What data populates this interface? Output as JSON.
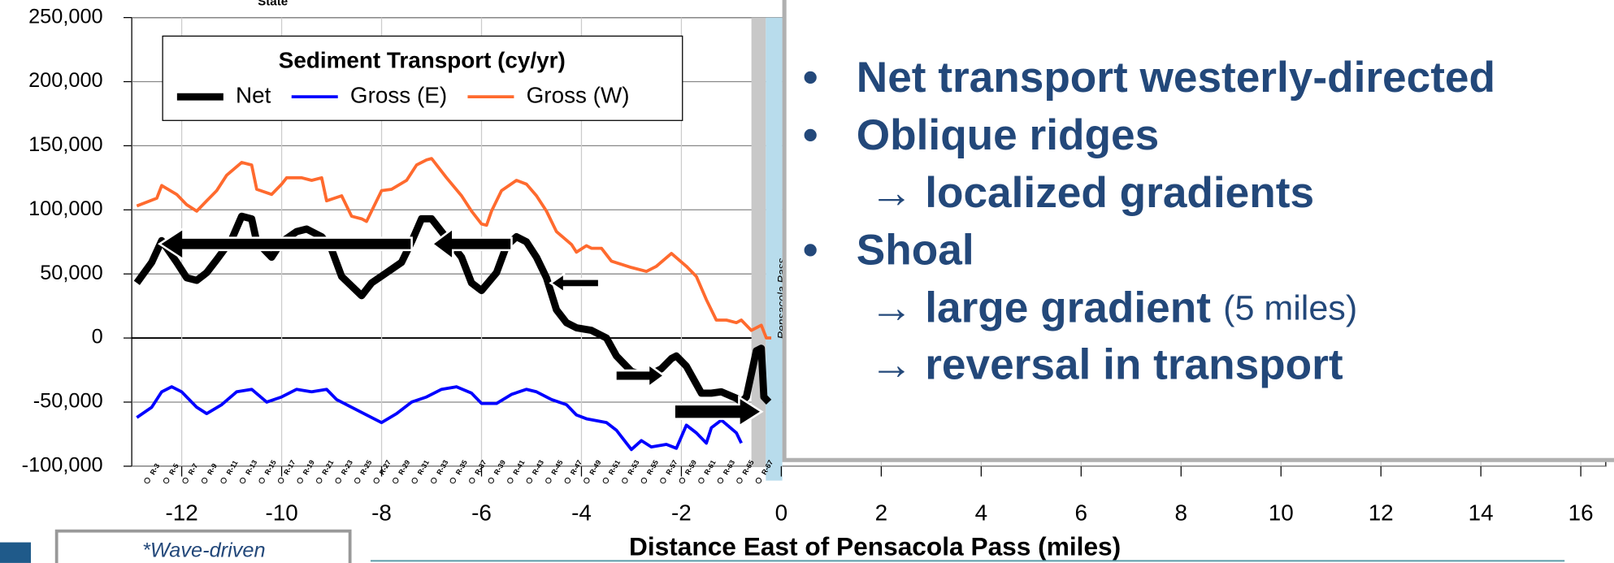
{
  "chart_data": {
    "type": "line",
    "legend_title": "Sediment Transport (cy/yr)",
    "x_label": "Distance East of Pensacola Pass (miles)",
    "annotations": [
      "Pensacola Pass",
      "State"
    ],
    "monument_labels": [
      "R-3",
      "R-5",
      "R-7",
      "R-9",
      "R-11",
      "R-13",
      "R-15",
      "R-17",
      "R-19",
      "R-21",
      "R-23",
      "R-25",
      "R-27",
      "R-29",
      "R-31",
      "R-33",
      "R-35",
      "R-37",
      "R-39",
      "R-41",
      "R-43",
      "R-45",
      "R-47",
      "R-49",
      "R-51",
      "R-53",
      "R-55",
      "R-57",
      "R-59",
      "R-61",
      "R-63",
      "R-65",
      "R-67"
    ],
    "xlim": [
      -13,
      16.5
    ],
    "xticks": [
      -12,
      -10,
      -8,
      -6,
      -4,
      -2,
      0,
      2,
      4,
      6,
      8,
      10,
      12,
      14,
      16
    ],
    "ylim": [
      -100000,
      250000
    ],
    "yticks": [
      {
        "value": -100000,
        "label": "-100,000"
      },
      {
        "value": -50000,
        "label": "-50,000"
      },
      0,
      {
        "value": 50000,
        "label": "50,000"
      },
      {
        "value": 100000,
        "label": "100,000"
      },
      {
        "value": 150000,
        "label": "150,000"
      },
      {
        "value": 200000,
        "label": "200,000"
      },
      {
        "value": 250000,
        "label": "250,000"
      }
    ],
    "grid": true,
    "series": [
      {
        "name": "Net",
        "color": "#000000",
        "x": [
          -12.9,
          -12.6,
          -12.4,
          -12.1,
          -11.9,
          -11.7,
          -11.5,
          -11.3,
          -11.0,
          -10.8,
          -10.6,
          -10.5,
          -10.2,
          -10.0,
          -9.7,
          -9.5,
          -9.2,
          -9.0,
          -8.8,
          -8.4,
          -8.2,
          -7.9,
          -7.6,
          -7.4,
          -7.2,
          -7.0,
          -6.8,
          -6.4,
          -6.2,
          -6.0,
          -5.7,
          -5.5,
          -5.3,
          -5.1,
          -4.9,
          -4.7,
          -4.5,
          -4.3,
          -4.1,
          -3.8,
          -3.5,
          -3.3,
          -3.0,
          -2.7,
          -2.4,
          -2.2,
          -2.1,
          -1.9,
          -1.6,
          -1.4,
          -1.2,
          -0.9,
          -0.8,
          -0.7,
          -0.5,
          -0.4,
          -0.35,
          -0.25
        ],
        "values": [
          43000,
          59000,
          76000,
          59000,
          47000,
          45000,
          51000,
          61000,
          77000,
          95000,
          93000,
          75000,
          63000,
          75000,
          83000,
          85000,
          79000,
          69000,
          48000,
          33000,
          43000,
          51000,
          59000,
          75000,
          93000,
          93000,
          83000,
          63000,
          43000,
          37000,
          51000,
          72000,
          79000,
          75000,
          63000,
          47000,
          22000,
          12000,
          8000,
          6000,
          0,
          -14000,
          -26000,
          -30000,
          -24000,
          -16000,
          -14000,
          -22000,
          -43000,
          -43000,
          -42000,
          -47000,
          -50000,
          -46000,
          -10000,
          -8000,
          -46000,
          -50000
        ]
      },
      {
        "name": "Gross (E)",
        "color": "#0000ff",
        "x": [
          -12.9,
          -12.6,
          -12.4,
          -12.2,
          -12.0,
          -11.7,
          -11.5,
          -11.2,
          -10.9,
          -10.6,
          -10.3,
          -10.0,
          -9.7,
          -9.4,
          -9.1,
          -8.9,
          -8.5,
          -8.2,
          -8.0,
          -7.7,
          -7.4,
          -7.1,
          -6.8,
          -6.5,
          -6.2,
          -6.0,
          -5.7,
          -5.4,
          -5.1,
          -4.9,
          -4.6,
          -4.3,
          -4.1,
          -3.9,
          -3.5,
          -3.3,
          -3.0,
          -2.8,
          -2.6,
          -2.3,
          -2.1,
          -1.9,
          -1.7,
          -1.5,
          -1.4,
          -1.2,
          -0.9,
          -0.8
        ],
        "values": [
          -62000,
          -54000,
          -42000,
          -38000,
          -42000,
          -54000,
          -59000,
          -52000,
          -42000,
          -40000,
          -50000,
          -46000,
          -40000,
          -42000,
          -40000,
          -48000,
          -56000,
          -62000,
          -66000,
          -59000,
          -50000,
          -46000,
          -40000,
          -38000,
          -43000,
          -51000,
          -51000,
          -44000,
          -40000,
          -42000,
          -48000,
          -52000,
          -60000,
          -63000,
          -66000,
          -72000,
          -87000,
          -80000,
          -85000,
          -83000,
          -86000,
          -68000,
          -74000,
          -82000,
          -70000,
          -64000,
          -74000,
          -82000
        ]
      },
      {
        "name": "Gross (W)",
        "color": "#ff6a2e",
        "x": [
          -12.9,
          -12.5,
          -12.4,
          -12.1,
          -11.9,
          -11.7,
          -11.5,
          -11.3,
          -11.1,
          -10.8,
          -10.6,
          -10.5,
          -10.2,
          -10.0,
          -9.9,
          -9.6,
          -9.4,
          -9.2,
          -9.1,
          -8.8,
          -8.6,
          -8.4,
          -8.3,
          -8.0,
          -7.8,
          -7.5,
          -7.3,
          -7.1,
          -7.0,
          -6.7,
          -6.4,
          -6.2,
          -6.0,
          -5.9,
          -5.8,
          -5.6,
          -5.3,
          -5.1,
          -4.9,
          -4.7,
          -4.5,
          -4.2,
          -4.1,
          -3.9,
          -3.8,
          -3.6,
          -3.4,
          -3.0,
          -2.7,
          -2.5,
          -2.2,
          -1.9,
          -1.7,
          -1.5,
          -1.3,
          -1.1,
          -0.9,
          -0.8,
          -0.6,
          -0.4,
          -0.3,
          -0.2
        ],
        "values": [
          103000,
          109000,
          119000,
          112000,
          104000,
          99000,
          107000,
          115000,
          127000,
          137000,
          135000,
          116000,
          112000,
          120000,
          125000,
          125000,
          123000,
          125000,
          107000,
          111000,
          95000,
          93000,
          91000,
          115000,
          116000,
          123000,
          135000,
          139000,
          140000,
          125000,
          111000,
          99000,
          89000,
          88000,
          99000,
          115000,
          123000,
          120000,
          111000,
          99000,
          83000,
          73000,
          67000,
          72000,
          70000,
          70000,
          60000,
          55000,
          52000,
          56000,
          66000,
          56000,
          48000,
          30000,
          14000,
          14000,
          12000,
          14000,
          6000,
          10000,
          0,
          0
        ]
      }
    ]
  },
  "slide": {
    "bullets": [
      {
        "text": "Net transport westerly-directed"
      },
      {
        "text": "Oblique ridges",
        "sub": [
          {
            "text": "→ localized gradients"
          }
        ]
      },
      {
        "text": "Shoal",
        "sub": [
          {
            "text": "→ large gradient",
            "note": "(5 miles)"
          },
          {
            "text": "→ reversal in transport"
          }
        ]
      }
    ],
    "bullet_symbol": "•",
    "footnote": "*Wave-driven"
  }
}
